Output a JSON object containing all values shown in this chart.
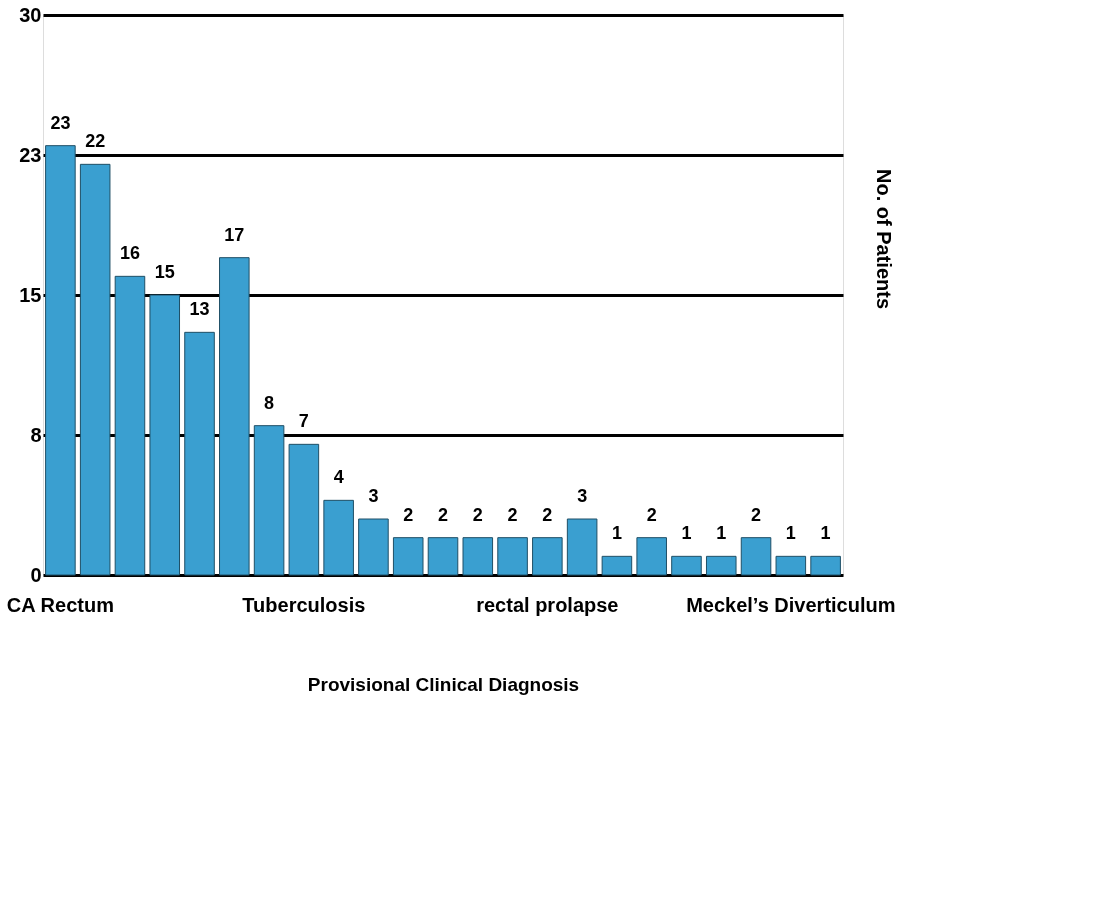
{
  "chart_data": {
    "type": "bar",
    "xlabel": "Provisional Clinical Diagnosis",
    "ylabel": "No. of Patients",
    "categories": [
      "CA Rectum",
      null,
      null,
      null,
      null,
      null,
      null,
      "Tuberculosis",
      null,
      null,
      null,
      null,
      null,
      null,
      "rectal prolapse",
      null,
      null,
      null,
      null,
      null,
      null,
      "Meckel’s Diverticulum",
      null
    ],
    "values": [
      23,
      22,
      16,
      15,
      13,
      17,
      8,
      7,
      4,
      3,
      2,
      2,
      2,
      2,
      2,
      3,
      1,
      2,
      1,
      1,
      2,
      1,
      1
    ],
    "color": "#3a9fd0",
    "ylim": [
      0,
      30
    ],
    "yticks": [
      0,
      {
        "value": 7.5,
        "label": "8"
      },
      15,
      {
        "value": 22.5,
        "label": "23"
      },
      30
    ],
    "grid": "y",
    "data_labels": true
  }
}
